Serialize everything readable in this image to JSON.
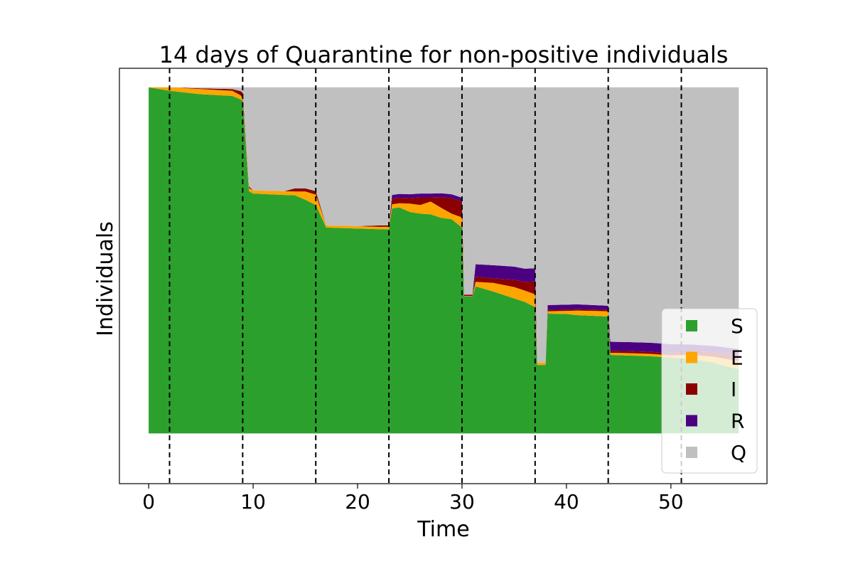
{
  "chart_data": {
    "type": "area",
    "stacked": true,
    "title": "14 days of Quarantine for non-positive individuals",
    "xlabel": "Time",
    "ylabel": "Individuals",
    "xlim": [
      -2.8,
      59.2
    ],
    "ylim": [
      -14.5,
      105.5
    ],
    "x_ticks": [
      0,
      10,
      20,
      30,
      40,
      50
    ],
    "y_ticks_shown": false,
    "grid": false,
    "legend_position": "lower right",
    "series": [
      {
        "name": "S",
        "color": "#2ca02c"
      },
      {
        "name": "E",
        "color": "#ffa500"
      },
      {
        "name": "I",
        "color": "#8b0000"
      },
      {
        "name": "R",
        "color": "#4b0082"
      },
      {
        "name": "Q",
        "color": "#c0c0c0"
      }
    ],
    "quarantine_release_days": [
      2,
      9,
      16,
      23,
      30,
      37,
      44,
      51
    ],
    "total": 100,
    "points": [
      {
        "t": 0,
        "S": 100,
        "E": 0,
        "I": 0,
        "R": 0
      },
      {
        "t": 2,
        "S": 99,
        "E": 1,
        "I": 0,
        "R": 0
      },
      {
        "t": 5,
        "S": 98,
        "E": 1.5,
        "I": 0.2,
        "R": 0
      },
      {
        "t": 8,
        "S": 97.5,
        "E": 1.5,
        "I": 0.5,
        "R": 0
      },
      {
        "t": 8.8,
        "S": 96.5,
        "E": 1.2,
        "I": 1.2,
        "R": 0
      },
      {
        "t": 9,
        "S": 96,
        "E": 1,
        "I": 1.5,
        "R": 0
      },
      {
        "t": 9.6,
        "S": 70,
        "E": 0.9,
        "I": 0.5,
        "R": 0
      },
      {
        "t": 10,
        "S": 69.3,
        "E": 0.9,
        "I": 0,
        "R": 0
      },
      {
        "t": 13,
        "S": 68.9,
        "E": 1.1,
        "I": 0,
        "R": 0
      },
      {
        "t": 14,
        "S": 68.8,
        "E": 1.1,
        "I": 0.9,
        "R": 0
      },
      {
        "t": 15,
        "S": 67.5,
        "E": 2.4,
        "I": 0.9,
        "R": 0
      },
      {
        "t": 16,
        "S": 66,
        "E": 3,
        "I": 1,
        "R": 0
      },
      {
        "t": 17,
        "S": 59.5,
        "E": 0.6,
        "I": 0,
        "R": 0
      },
      {
        "t": 20,
        "S": 59.2,
        "E": 0.7,
        "I": 0,
        "R": 0
      },
      {
        "t": 22,
        "S": 59,
        "E": 0.7,
        "I": 0.4,
        "R": 0
      },
      {
        "t": 23,
        "S": 59,
        "E": 0.7,
        "I": 0.4,
        "R": 0
      },
      {
        "t": 23.3,
        "S": 65,
        "E": 1.2,
        "I": 1.6,
        "R": 1.1
      },
      {
        "t": 24,
        "S": 65.3,
        "E": 1.2,
        "I": 1.6,
        "R": 1.1
      },
      {
        "t": 25,
        "S": 64,
        "E": 2.4,
        "I": 1.6,
        "R": 1.1
      },
      {
        "t": 26,
        "S": 63.5,
        "E": 2.5,
        "I": 2.2,
        "R": 1.1
      },
      {
        "t": 27,
        "S": 63.3,
        "E": 3.7,
        "I": 1.2,
        "R": 1.1
      },
      {
        "t": 28,
        "S": 62.3,
        "E": 2.9,
        "I": 3.1,
        "R": 1.1
      },
      {
        "t": 29,
        "S": 61.9,
        "E": 1.6,
        "I": 4.5,
        "R": 1.1
      },
      {
        "t": 30,
        "S": 59.5,
        "E": 2.9,
        "I": 4.6,
        "R": 1.1
      },
      {
        "t": 30.2,
        "S": 39.6,
        "E": 0.1,
        "I": 0.4,
        "R": 0
      },
      {
        "t": 31,
        "S": 39.6,
        "E": 0.1,
        "I": 0.4,
        "R": 0
      },
      {
        "t": 31.3,
        "S": 42.5,
        "E": 1.3,
        "I": 1.5,
        "R": 3.6
      },
      {
        "t": 33,
        "S": 41,
        "E": 2.5,
        "I": 1.3,
        "R": 3.8
      },
      {
        "t": 35,
        "S": 39,
        "E": 3.3,
        "I": 2.1,
        "R": 3.8
      },
      {
        "t": 36,
        "S": 38,
        "E": 3.3,
        "I": 2.5,
        "R": 3.8
      },
      {
        "t": 37,
        "S": 36.5,
        "E": 3.7,
        "I": 3.7,
        "R": 3.8
      },
      {
        "t": 37.2,
        "S": 19.8,
        "E": 0.7,
        "I": 0,
        "R": 0
      },
      {
        "t": 38,
        "S": 19.8,
        "E": 0.7,
        "I": 0,
        "R": 0
      },
      {
        "t": 38.2,
        "S": 34.6,
        "E": 0.7,
        "I": 0.4,
        "R": 1.4
      },
      {
        "t": 40,
        "S": 34.5,
        "E": 0.9,
        "I": 0.4,
        "R": 1.4
      },
      {
        "t": 41,
        "S": 34.2,
        "E": 1.3,
        "I": 0.4,
        "R": 1.4
      },
      {
        "t": 44,
        "S": 33.8,
        "E": 1.5,
        "I": 0.4,
        "R": 1.2
      },
      {
        "t": 44.2,
        "S": 22.7,
        "E": 0.6,
        "I": 0.6,
        "R": 2.6
      },
      {
        "t": 46,
        "S": 22.5,
        "E": 0.7,
        "I": 0.6,
        "R": 2.6
      },
      {
        "t": 48,
        "S": 22.3,
        "E": 0.7,
        "I": 0.6,
        "R": 2.6
      },
      {
        "t": 50,
        "S": 21.9,
        "E": 0.7,
        "I": 0.6,
        "R": 2.6
      },
      {
        "t": 52,
        "S": 21.5,
        "E": 1.2,
        "I": 1.0,
        "R": 2.0
      },
      {
        "t": 54,
        "S": 20.5,
        "E": 1.7,
        "I": 1.3,
        "R": 1.8
      },
      {
        "t": 56.5,
        "S": 18.5,
        "E": 2.4,
        "I": 1.7,
        "R": 1.8
      }
    ]
  }
}
